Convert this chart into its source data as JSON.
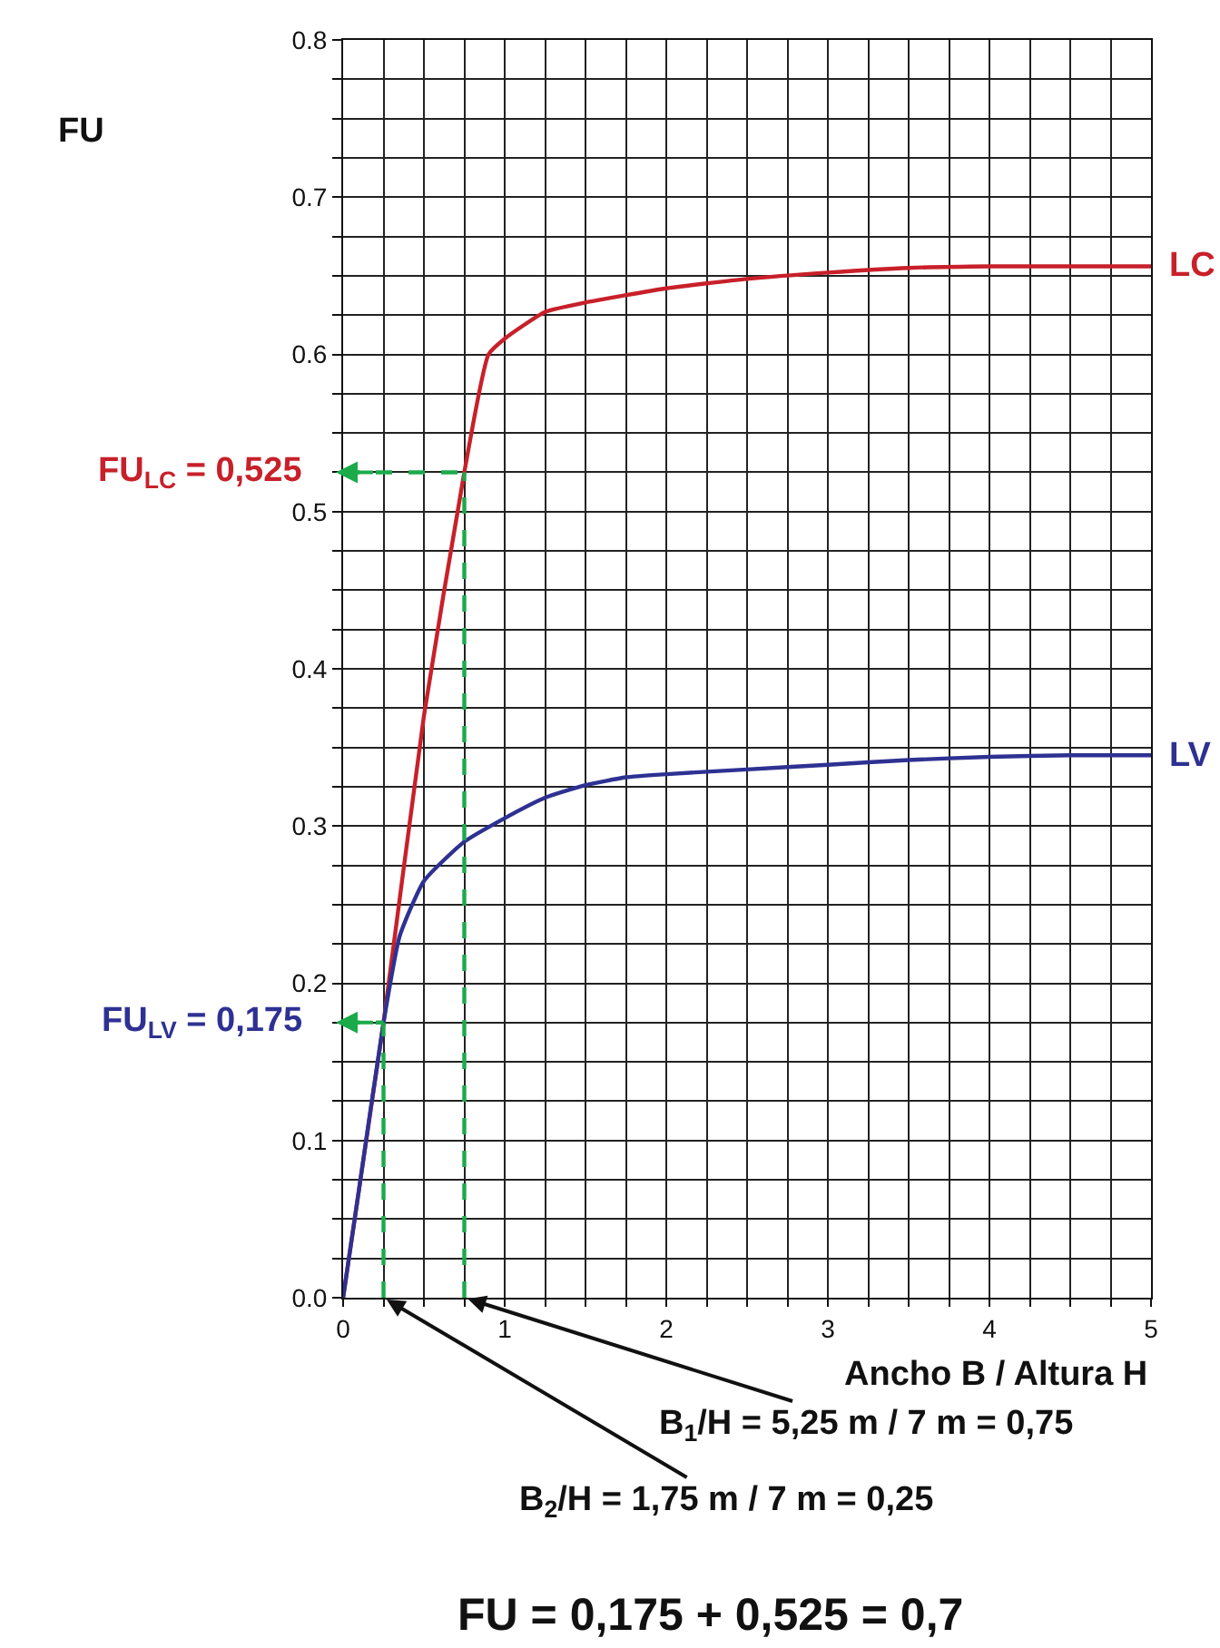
{
  "chart_data": {
    "type": "line",
    "xlabel": "Ancho B / Altura H",
    "xlim": [
      0,
      5
    ],
    "xticks": [
      0,
      {
        "value": 0.25,
        "label": null
      },
      {
        "value": 0.5,
        "label": null
      },
      {
        "value": 0.75,
        "label": null
      },
      1,
      {
        "value": 1.25,
        "label": null
      },
      {
        "value": 1.5,
        "label": null
      },
      {
        "value": 1.75,
        "label": null
      },
      2,
      {
        "value": 2.25,
        "label": null
      },
      {
        "value": 2.5,
        "label": null
      },
      {
        "value": 2.75,
        "label": null
      },
      3,
      {
        "value": 3.25,
        "label": null
      },
      {
        "value": 3.5,
        "label": null
      },
      {
        "value": 3.75,
        "label": null
      },
      4,
      {
        "value": 4.25,
        "label": null
      },
      {
        "value": 4.5,
        "label": null
      },
      {
        "value": 4.75,
        "label": null
      },
      5
    ],
    "ylim": [
      0,
      0.8
    ],
    "yticks": [
      {
        "value": 0,
        "label": "0.0"
      },
      {
        "value": 0.025,
        "label": null
      },
      {
        "value": 0.05,
        "label": null
      },
      {
        "value": 0.075,
        "label": null
      },
      0.1,
      {
        "value": 0.125,
        "label": null
      },
      {
        "value": 0.15,
        "label": null
      },
      {
        "value": 0.175,
        "label": null
      },
      0.2,
      {
        "value": 0.225,
        "label": null
      },
      {
        "value": 0.25,
        "label": null
      },
      {
        "value": 0.275,
        "label": null
      },
      0.3,
      {
        "value": 0.325,
        "label": null
      },
      {
        "value": 0.35,
        "label": null
      },
      {
        "value": 0.375,
        "label": null
      },
      0.4,
      {
        "value": 0.425,
        "label": null
      },
      {
        "value": 0.45,
        "label": null
      },
      {
        "value": 0.475,
        "label": null
      },
      0.5,
      {
        "value": 0.525,
        "label": null
      },
      {
        "value": 0.55,
        "label": null
      },
      {
        "value": 0.575,
        "label": null
      },
      0.6,
      {
        "value": 0.625,
        "label": null
      },
      {
        "value": 0.65,
        "label": null
      },
      {
        "value": 0.675,
        "label": null
      },
      0.7,
      {
        "value": 0.725,
        "label": null
      },
      {
        "value": 0.75,
        "label": null
      },
      {
        "value": 0.775,
        "label": null
      },
      0.8
    ],
    "grid": true,
    "legend": false,
    "marker": "none",
    "line_style": "solid",
    "series": [
      {
        "name": "LC",
        "color": "#c8202a",
        "x": [
          0,
          0.25,
          0.5,
          0.75,
          0.9,
          1,
          1.25,
          1.5,
          2,
          2.5,
          3,
          3.5,
          4,
          4.5,
          5
        ],
        "values": [
          0,
          0.175,
          0.37,
          0.525,
          0.6,
          0.61,
          0.627,
          0.633,
          0.642,
          0.648,
          0.652,
          0.655,
          0.656,
          0.656,
          0.656
        ]
      },
      {
        "name": "LV",
        "color": "#2e3192",
        "x": [
          0,
          0.1,
          0.25,
          0.35,
          0.5,
          0.75,
          1,
          1.25,
          1.5,
          1.75,
          2,
          2.5,
          3,
          3.5,
          4,
          4.5,
          5
        ],
        "values": [
          0,
          0.07,
          0.175,
          0.23,
          0.265,
          0.29,
          0.305,
          0.318,
          0.326,
          0.331,
          0.333,
          0.336,
          0.339,
          0.342,
          0.344,
          0.345,
          0.345
        ]
      }
    ],
    "ref_lines": [
      {
        "axis": "y",
        "value": 0.525,
        "label": "FU$_{LC}$ = 0,525",
        "color": "#1aaa4a",
        "line_style": "dashed"
      },
      {
        "axis": "y",
        "value": 0.175,
        "label": "FU$_{LV}$ = 0,175",
        "color": "#1aaa4a",
        "line_style": "dashed"
      },
      {
        "axis": "x",
        "value": 0.75,
        "label": "B$_{1}$/H = 5,25 m / 7 m = 0,75",
        "color": "#1aaa4a",
        "line_style": "dashed"
      },
      {
        "axis": "x",
        "value": 0.25,
        "label": "B$_{2}$/H = 1,75 m / 7 m = 0,25",
        "color": "#1aaa4a",
        "line_style": "dashed"
      }
    ],
    "annotations": [
      "FU",
      "FU = 0,175 + 0,525 = 0,7"
    ]
  }
}
